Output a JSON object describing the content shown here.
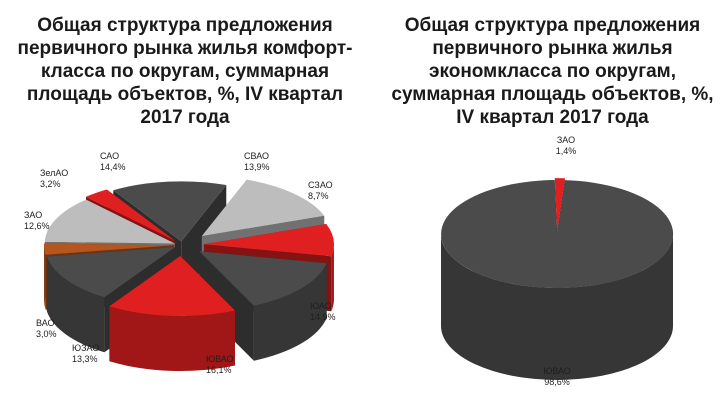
{
  "chart_data": [
    {
      "type": "pie",
      "title": "Общая структура  предложения первичного рынка жилья комфорт-класса по округам, суммарная площадь объектов, %, IV квартал 2017 года",
      "categories": [
        "САО",
        "СВАО",
        "СЗАО",
        "ЮАО",
        "ЮВАО",
        "ЮЗАО",
        "ВАО",
        "ЗАО",
        "ЗелАО"
      ],
      "values": [
        14.4,
        13.9,
        8.7,
        14.9,
        16.1,
        13.3,
        3.0,
        12.6,
        3.2
      ],
      "value_labels": [
        "14,4%",
        "13,9%",
        "8,7%",
        "14,9%",
        "16,1%",
        "13,3%",
        "3,0%",
        "12,6%",
        "3,2%"
      ],
      "colors": [
        "#4b4b4b",
        "#bdbdbd",
        "#e02020",
        "#4b4b4b",
        "#e02020",
        "#4b4b4b",
        "#b5561e",
        "#bdbdbd",
        "#e02020"
      ],
      "style": "3d-exploded",
      "legend": "none"
    },
    {
      "type": "pie",
      "title": "Общая структура предложения первичного рынка жилья экономкласса по округам, суммарная площадь объектов, %, IV квартал 2017 года",
      "categories": [
        "ЗАО",
        "ЮВАО"
      ],
      "values": [
        1.4,
        98.6
      ],
      "value_labels": [
        "1,4%",
        "98,6%"
      ],
      "colors": [
        "#e02020",
        "#4b4b4b"
      ],
      "style": "3d",
      "legend": "none"
    }
  ]
}
